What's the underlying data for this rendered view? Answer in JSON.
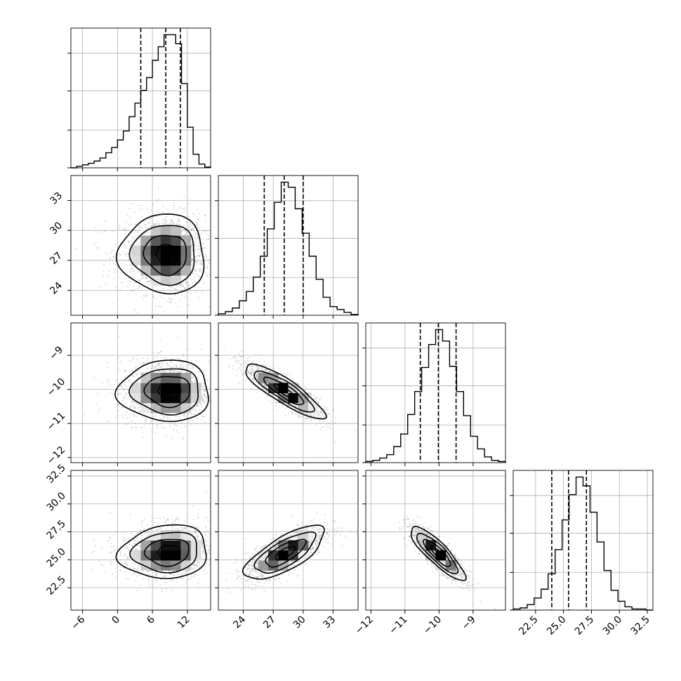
{
  "chart_data": {
    "type": "corner",
    "grid": true,
    "parameters": [
      {
        "id": "p0",
        "ticks": [
          -6,
          0,
          6,
          12
        ],
        "tick_labels": [
          "−6",
          "0",
          "6",
          "12"
        ],
        "range": [
          -8,
          16
        ],
        "quantiles": [
          4.0,
          8.3,
          10.8
        ],
        "histogram": {
          "type": "step",
          "bin_edges": [
            -8,
            -7,
            -6,
            -5,
            -4,
            -3,
            -2,
            -1,
            0,
            1,
            2,
            3,
            4,
            5,
            6,
            7,
            8,
            9,
            10,
            11,
            12,
            13,
            14,
            15,
            16
          ],
          "counts": [
            0,
            2,
            4,
            6,
            9,
            13,
            20,
            27,
            37,
            49,
            68,
            86,
            103,
            120,
            143,
            161,
            177,
            177,
            165,
            112,
            54,
            18,
            5,
            1
          ]
        }
      },
      {
        "id": "p1",
        "ticks": [
          24,
          27,
          30,
          33
        ],
        "tick_labels": [
          "24",
          "27",
          "30",
          "33"
        ],
        "range": [
          21.5,
          35.5
        ],
        "quantiles": [
          26.1,
          28.1,
          30.0
        ],
        "histogram": {
          "type": "step",
          "bin_edges": [
            21.5,
            22.2,
            22.9,
            23.6,
            24.3,
            25.0,
            25.7,
            26.4,
            27.1,
            27.8,
            28.5,
            29.2,
            29.9,
            30.6,
            31.3,
            32.0,
            32.7,
            33.4,
            34.1,
            34.8,
            35.5
          ],
          "counts": [
            2,
            5,
            10,
            20,
            33,
            53,
            82,
            120,
            157,
            185,
            178,
            148,
            114,
            82,
            50,
            25,
            12,
            8,
            4,
            1
          ]
        }
      },
      {
        "id": "p2",
        "ticks": [
          -12,
          -11,
          -10,
          -9
        ],
        "tick_labels": [
          "−12",
          "−11",
          "−10",
          "−9"
        ],
        "range": [
          -12.15,
          -8.05
        ],
        "quantiles": [
          -10.55,
          -10.02,
          -9.5
        ],
        "histogram": {
          "type": "step",
          "bin_edges": [
            -12.15,
            -11.945,
            -11.74,
            -11.535,
            -11.33,
            -11.125,
            -10.92,
            -10.715,
            -10.51,
            -10.305,
            -10.1,
            -9.895,
            -9.69,
            -9.485,
            -9.28,
            -9.075,
            -8.87,
            -8.665,
            -8.46,
            -8.255,
            -8.05
          ],
          "counts": [
            1,
            2,
            4,
            7,
            14,
            25,
            42,
            62,
            83,
            103,
            116,
            106,
            84,
            62,
            41,
            23,
            12,
            5,
            2,
            1
          ]
        }
      },
      {
        "id": "p3",
        "ticks": [
          22.5,
          25.0,
          27.5,
          30.0,
          32.5
        ],
        "tick_labels": [
          "22.5",
          "25.0",
          "27.5",
          "30.0",
          "32.5"
        ],
        "range": [
          20.5,
          33.0
        ],
        "quantiles": [
          23.95,
          25.45,
          27.05
        ],
        "histogram": {
          "type": "step",
          "bin_edges": [
            20.5,
            21.125,
            21.75,
            22.375,
            23.0,
            23.625,
            24.25,
            24.875,
            25.5,
            26.125,
            26.75,
            27.375,
            28.0,
            28.625,
            29.25,
            29.875,
            30.5,
            31.125,
            31.75,
            32.375,
            33.0
          ],
          "counts": [
            1,
            2,
            5,
            11,
            19,
            33,
            55,
            82,
            105,
            121,
            113,
            89,
            62,
            36,
            18,
            8,
            3,
            1,
            1,
            0
          ]
        }
      }
    ],
    "pairs": [
      {
        "x": "p0",
        "y": "p1",
        "mean": [
          8.8,
          27.6
        ],
        "corr": -0.03,
        "spread": [
          3.1,
          2.0
        ],
        "skew_left": 0.9
      },
      {
        "x": "p0",
        "y": "p2",
        "mean": [
          9.2,
          -10.05
        ],
        "corr": 0.0,
        "spread": [
          3.3,
          0.45
        ],
        "skew_left": 0.9
      },
      {
        "x": "p1",
        "y": "p2",
        "mean": [
          28.1,
          -10.05
        ],
        "corr": -0.86,
        "spread": [
          2.0,
          0.4
        ],
        "skew_left": 0
      },
      {
        "x": "p0",
        "y": "p3",
        "mean": [
          9.1,
          25.7
        ],
        "corr": 0.1,
        "spread": [
          3.2,
          1.2
        ],
        "skew_left": 0.9
      },
      {
        "x": "p1",
        "y": "p3",
        "mean": [
          28.2,
          25.6
        ],
        "corr": 0.72,
        "spread": [
          2.0,
          1.2
        ],
        "skew_left": 0
      },
      {
        "x": "p2",
        "y": "p3",
        "mean": [
          -10.05,
          25.6
        ],
        "corr": -0.86,
        "spread": [
          0.4,
          1.2
        ],
        "skew_left": 0
      }
    ],
    "contour_levels": [
      "0.5-sigma",
      "1-sigma",
      "1.5-sigma",
      "2-sigma"
    ]
  }
}
